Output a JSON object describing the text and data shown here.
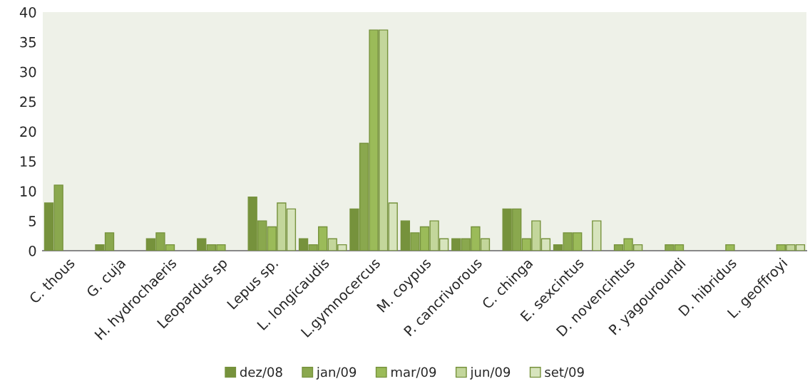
{
  "chart_data": {
    "type": "bar",
    "categories": [
      "C. thous",
      "G. cuja",
      "H. hydrochaeris",
      "Leopardus sp",
      "Lepus sp.",
      "L. longicaudis",
      "L.gymnocercus",
      "M. coypus",
      "P. cancrivorous",
      "C. chinga",
      "E. sexcintus",
      "D. novencintus",
      "P. yagouroundi",
      "D. hibridus",
      "L. geoffroyi"
    ],
    "series": [
      {
        "name": "dez/08",
        "color": "#76923c",
        "values": [
          8,
          1,
          2,
          2,
          9,
          2,
          7,
          5,
          2,
          7,
          1,
          null,
          null,
          null,
          null
        ]
      },
      {
        "name": "jan/09",
        "color": "#8aa84e",
        "values": [
          11,
          3,
          3,
          1,
          5,
          1,
          18,
          3,
          2,
          7,
          3,
          1,
          1,
          null,
          null
        ]
      },
      {
        "name": "mar/09",
        "color": "#9bbb59",
        "values": [
          null,
          null,
          1,
          1,
          4,
          4,
          37,
          4,
          4,
          2,
          3,
          2,
          1,
          1,
          1
        ]
      },
      {
        "name": "jun/09",
        "color": "#c3d69b",
        "values": [
          null,
          null,
          null,
          null,
          8,
          2,
          37,
          5,
          2,
          5,
          null,
          1,
          null,
          null,
          1
        ]
      },
      {
        "name": "set/09",
        "color": "#d7e4bd",
        "values": [
          null,
          null,
          null,
          null,
          7,
          1,
          8,
          2,
          null,
          2,
          5,
          null,
          null,
          null,
          1
        ]
      }
    ],
    "ylim": [
      0,
      40
    ],
    "yticks": [
      0,
      5,
      10,
      15,
      20,
      25,
      30,
      35,
      40
    ],
    "legend": "bottom",
    "grid": false
  }
}
